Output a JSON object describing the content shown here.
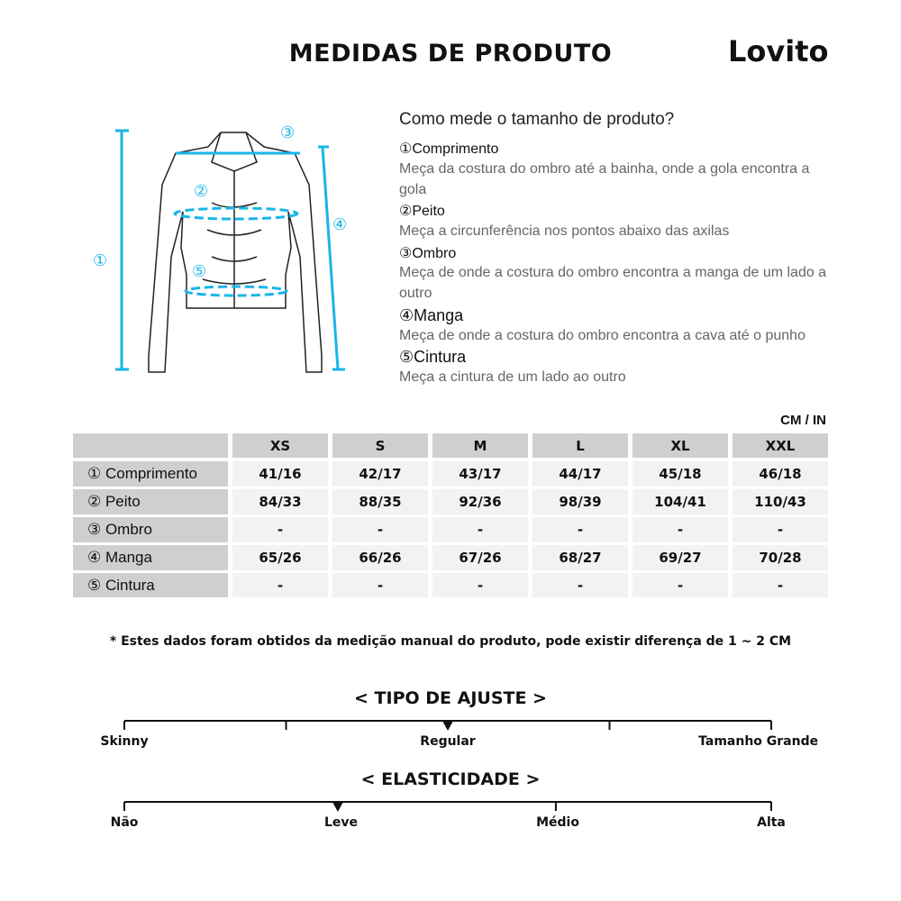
{
  "header": {
    "title": "MEDIDAS DE PRODUTO",
    "brand": "Lovito"
  },
  "guide": {
    "heading": "Como mede o tamanho de produto?",
    "items": [
      {
        "num": "①",
        "name": "Comprimento",
        "desc": "Meça da costura do ombro até a bainha, onde a gola encontra a gola"
      },
      {
        "num": "②",
        "name": "Peito",
        "desc": "Meça a circunferência nos pontos abaixo das axilas"
      },
      {
        "num": "③",
        "name": "Ombro",
        "desc": "Meça de onde a costura do ombro encontra a manga de um lado a outro"
      },
      {
        "num": "④",
        "name": "Manga",
        "desc": "Meça de onde a costura do ombro encontra a cava até o punho"
      },
      {
        "num": "⑤",
        "name": "Cintura",
        "desc": "Meça a cintura de um lado ao outro"
      }
    ]
  },
  "diagram": {
    "markers": [
      "①",
      "②",
      "③",
      "④",
      "⑤"
    ],
    "accent": "#19b5e8"
  },
  "table": {
    "unit": "CM / IN",
    "sizes": [
      "XS",
      "S",
      "M",
      "L",
      "XL",
      "XXL"
    ],
    "rows": [
      {
        "label": "① Comprimento",
        "values": [
          "41/16",
          "42/17",
          "43/17",
          "44/17",
          "45/18",
          "46/18"
        ]
      },
      {
        "label": "② Peito",
        "values": [
          "84/33",
          "88/35",
          "92/36",
          "98/39",
          "104/41",
          "110/43"
        ]
      },
      {
        "label": "③ Ombro",
        "values": [
          "-",
          "-",
          "-",
          "-",
          "-",
          "-"
        ]
      },
      {
        "label": "④ Manga",
        "values": [
          "65/26",
          "66/26",
          "67/26",
          "68/27",
          "69/27",
          "70/28"
        ]
      },
      {
        "label": "⑤ Cintura",
        "values": [
          "-",
          "-",
          "-",
          "-",
          "-",
          "-"
        ]
      }
    ]
  },
  "note": "* Estes dados foram obtidos da medição manual do produto, pode existir diferença de 1 ~ 2 CM",
  "fit": {
    "title": "< TIPO DE AJUSTE >",
    "labels": [
      "Skinny",
      "Regular",
      "Tamanho Grande"
    ],
    "level": 0.5
  },
  "elasticity": {
    "title": "< ELASTICIDADE >",
    "labels": [
      "Não",
      "Leve",
      "Médio",
      "Alta"
    ],
    "level": 0.33
  }
}
